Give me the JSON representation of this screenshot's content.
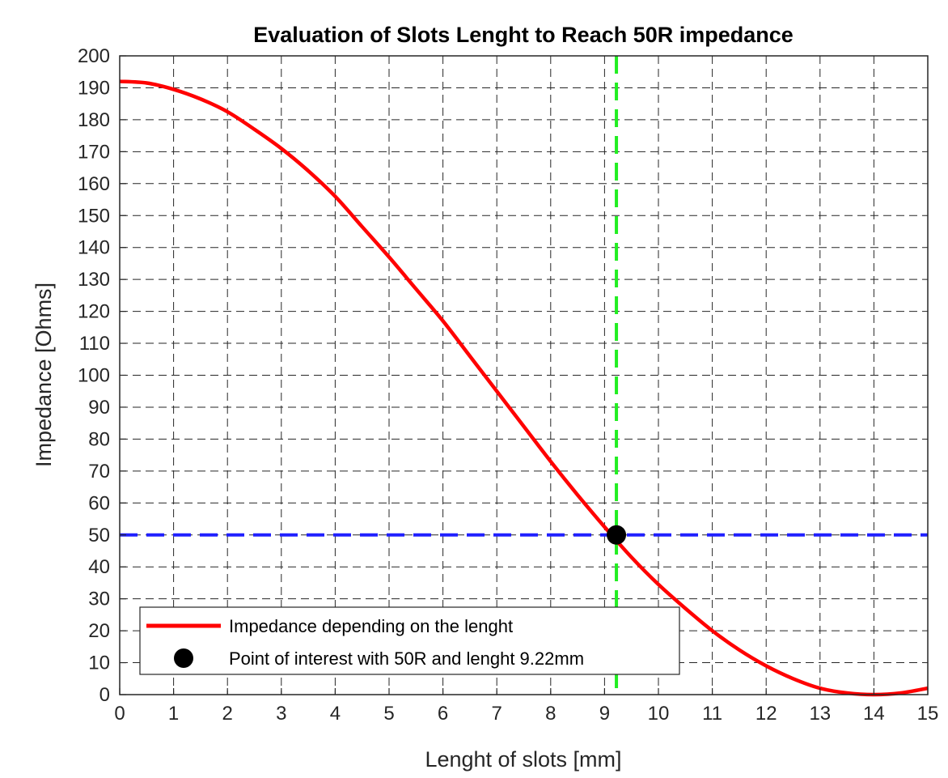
{
  "chart_data": {
    "type": "line",
    "title": "Evaluation of Slots Lenght to Reach 50R impedance",
    "xlabel": "Lenght of slots [mm]",
    "ylabel": "Impedance [Ohms]",
    "xlim": [
      0,
      15
    ],
    "ylim": [
      0,
      200
    ],
    "xticks": [
      "0",
      "1",
      "2",
      "3",
      "4",
      "5",
      "6",
      "7",
      "8",
      "9",
      "10",
      "11",
      "12",
      "13",
      "14",
      "15"
    ],
    "yticks": [
      "0",
      "10",
      "20",
      "30",
      "40",
      "50",
      "60",
      "70",
      "80",
      "90",
      "100",
      "110",
      "120",
      "130",
      "140",
      "150",
      "160",
      "170",
      "180",
      "190",
      "200"
    ],
    "grid": true,
    "legend_position": "bottom-left",
    "series": [
      {
        "name": "Impedance depending on the lenght",
        "color": "#ff0000",
        "style": "solid",
        "x": [
          0,
          0.5,
          1,
          1.5,
          2,
          2.5,
          3,
          3.5,
          4,
          4.5,
          5,
          5.5,
          6,
          6.5,
          7,
          7.5,
          8,
          8.5,
          9,
          9.5,
          10,
          10.5,
          11,
          11.5,
          12,
          12.5,
          13,
          13.5,
          14,
          14.5,
          15
        ],
        "y": [
          192,
          191.5,
          189.5,
          186.5,
          182.5,
          177,
          171,
          164,
          156,
          146.5,
          137,
          127,
          117,
          106,
          95,
          84,
          73,
          62.5,
          52.5,
          43,
          34.5,
          27,
          20,
          14,
          9,
          5,
          2,
          0.5,
          0,
          0.5,
          2
        ]
      },
      {
        "name": "Point of interest with 50R and lenght 9.22mm",
        "color": "#000000",
        "style": "marker",
        "x": [
          9.22
        ],
        "y": [
          50
        ]
      }
    ],
    "reference_lines": [
      {
        "orientation": "horizontal",
        "value": 50,
        "color": "#2020ff",
        "style": "dashed"
      },
      {
        "orientation": "vertical",
        "value": 9.22,
        "color": "#22ee22",
        "style": "dashed"
      }
    ]
  }
}
